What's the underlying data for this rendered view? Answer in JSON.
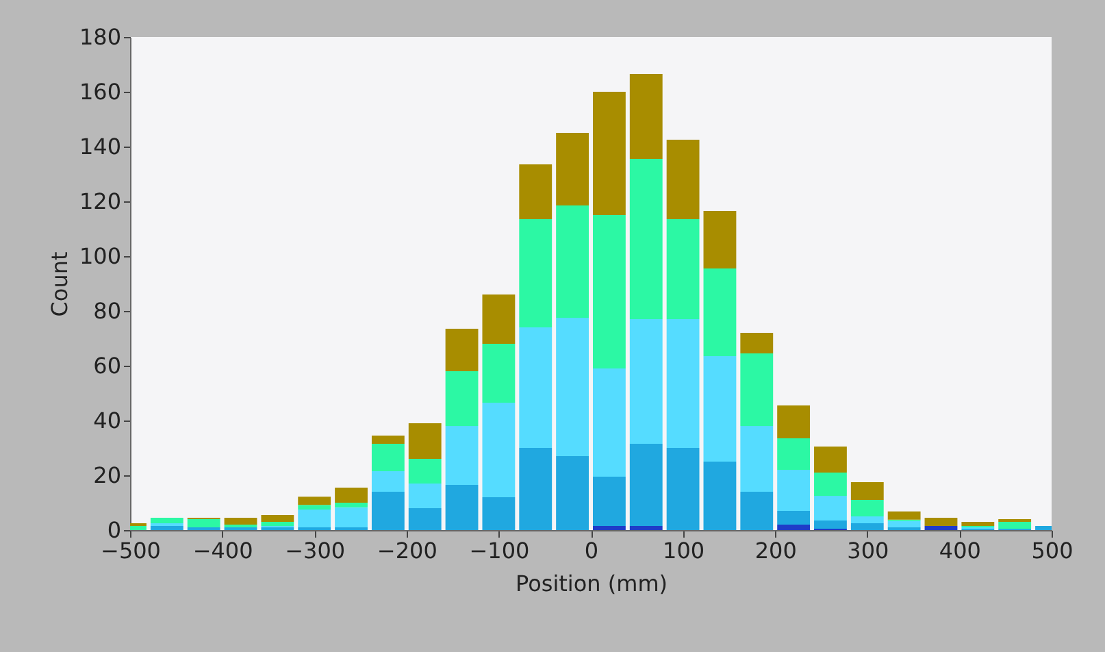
{
  "chart_data": {
    "type": "bar",
    "stacked": true,
    "xlabel": "Position (mm)",
    "ylabel": "Count",
    "x": [
      -500,
      -460,
      -420,
      -380,
      -340,
      -300,
      -260,
      -220,
      -180,
      -140,
      -100,
      -60,
      -20,
      20,
      60,
      100,
      140,
      180,
      220,
      260,
      300,
      340,
      380,
      420,
      460,
      500
    ],
    "series": [
      {
        "color": "#1f3cc8",
        "values": [
          0,
          0,
          0,
          0,
          0,
          0,
          0,
          0,
          0,
          0,
          0,
          0,
          0,
          1.5,
          1.5,
          0,
          0,
          0,
          2,
          0.5,
          0,
          0,
          1.5,
          0,
          0,
          0
        ]
      },
      {
        "color": "#20a8e0",
        "values": [
          0,
          1.5,
          1,
          1,
          1,
          1,
          1,
          14,
          8,
          16.5,
          12,
          30,
          27,
          18,
          30,
          30,
          25,
          14,
          5,
          3,
          2.5,
          1,
          0,
          0.5,
          0.5,
          1.5
        ]
      },
      {
        "color": "#55dcff",
        "values": [
          0,
          1,
          0,
          0,
          0.5,
          6.5,
          7.3,
          7.5,
          9,
          21.5,
          34.5,
          44,
          50.5,
          39.5,
          45.5,
          47,
          38.5,
          24,
          15,
          9,
          2.5,
          2.3,
          0,
          0.5,
          0,
          0
        ]
      },
      {
        "color": "#2cf8a4",
        "values": [
          1.5,
          2,
          3,
          1,
          1.5,
          1.7,
          1.7,
          10,
          9,
          20,
          21.5,
          39.5,
          41,
          56,
          58.5,
          36.5,
          32,
          26.5,
          11.5,
          8.5,
          6,
          0.5,
          0,
          0.5,
          2.5,
          0
        ]
      },
      {
        "color": "#a88d00",
        "values": [
          1,
          0,
          0.5,
          2.5,
          2.5,
          3,
          5.5,
          3,
          13,
          15.5,
          18,
          20,
          26.5,
          45,
          31,
          29,
          21,
          7.5,
          12,
          9.5,
          6.5,
          3,
          3,
          1.5,
          1,
          0
        ]
      }
    ],
    "xlim": [
      -500,
      500
    ],
    "xticks": [
      -500,
      -400,
      -300,
      -200,
      -100,
      0,
      100,
      200,
      300,
      400,
      500
    ],
    "ylim": [
      0,
      180
    ],
    "yticks": [
      0,
      20,
      40,
      60,
      80,
      100,
      120,
      140,
      160,
      180
    ]
  }
}
